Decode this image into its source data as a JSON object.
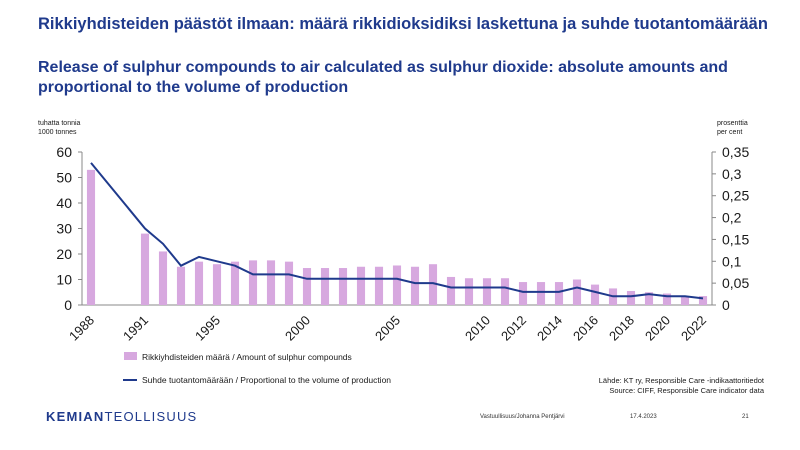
{
  "title_fi": "Rikkiyhdisteiden päästöt ilmaan: määrä rikkidioksidiksi laskettuna ja suhde tuotantomäärään",
  "title_en": "Release of sulphur compounds to air calculated as sulphur dioxide: absolute amounts and proportional to the volume of production",
  "left_unit": [
    "tuhatta tonnia",
    "1000 tonnes"
  ],
  "right_unit": [
    "prosenttia",
    "per cent"
  ],
  "source": [
    "Lähde: KT ry, Responsible Care -indikaattoritiedot",
    "Source: CIFF, Responsible Care indicator data"
  ],
  "footer": {
    "logo_bold": "KEMIAN",
    "logo_rest": "TEOLLISUUS",
    "author": "Vastuullisuus/Johanna Pentjärvi",
    "date": "17.4.2023",
    "page": "21"
  },
  "colors": {
    "bar": "#d7a8df",
    "line": "#1f3a8c",
    "text": "#1f3a8c"
  },
  "chart_data": {
    "type": "bar+line",
    "x": [
      1988,
      1989,
      1990,
      1991,
      1992,
      1993,
      1994,
      1995,
      1996,
      1997,
      1998,
      1999,
      2000,
      2001,
      2002,
      2003,
      2004,
      2005,
      2006,
      2007,
      2008,
      2009,
      2010,
      2011,
      2012,
      2013,
      2014,
      2015,
      2016,
      2017,
      2018,
      2019,
      2020,
      2021,
      2022
    ],
    "x_tick_labels": [
      "1988",
      "1991",
      "1995",
      "2000",
      "2005",
      "2010",
      "2012",
      "2014",
      "2016",
      "2018",
      "2020",
      "2022"
    ],
    "series": [
      {
        "name": "Rikkiyhdisteiden määrä / Amount of sulphur compounds",
        "type": "bar",
        "axis": "left",
        "values": [
          53,
          null,
          null,
          28,
          21,
          15,
          17,
          16,
          17,
          17.5,
          17.5,
          17,
          14.5,
          14.5,
          14.5,
          15,
          15,
          15.5,
          15,
          16,
          11,
          10.5,
          10.5,
          10.5,
          9,
          9,
          9,
          10,
          8,
          6.5,
          5.5,
          5,
          4.5,
          3.5,
          3.5
        ]
      },
      {
        "name": "Suhde tuotantomäärään / Proportional to the volume of production",
        "type": "line",
        "axis": "right",
        "values": [
          0.325,
          null,
          null,
          0.175,
          0.14,
          0.09,
          0.11,
          0.1,
          0.09,
          0.07,
          0.07,
          0.07,
          0.06,
          0.06,
          0.06,
          0.06,
          0.06,
          0.06,
          0.05,
          0.05,
          0.04,
          0.04,
          0.04,
          0.04,
          0.03,
          0.03,
          0.03,
          0.04,
          0.03,
          0.02,
          0.02,
          0.025,
          0.02,
          0.02,
          0.015
        ]
      }
    ],
    "y_left": {
      "min": 0,
      "max": 60,
      "ticks": [
        "0",
        "10",
        "20",
        "30",
        "40",
        "50",
        "60"
      ]
    },
    "y_right": {
      "min": 0,
      "max": 0.35,
      "ticks": [
        "0",
        "0,05",
        "0,1",
        "0,15",
        "0,2",
        "0,25",
        "0,3",
        "0,35"
      ]
    },
    "legend": "bottom-left",
    "grid": false
  }
}
